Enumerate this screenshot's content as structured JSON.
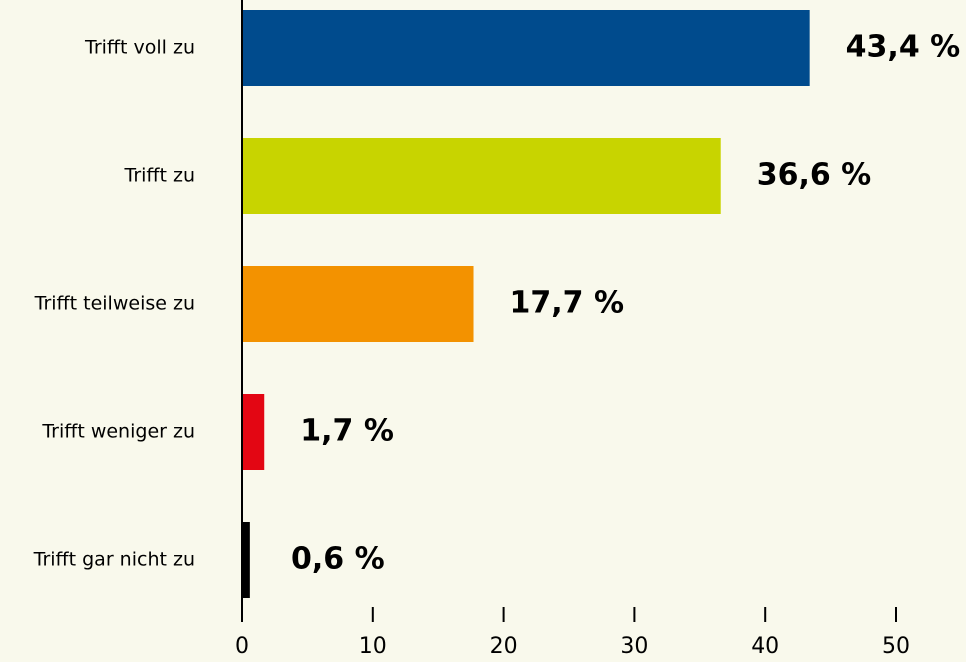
{
  "chart_data": {
    "type": "barh",
    "categories": [
      "Trifft voll zu",
      "Trifft zu",
      "Trifft teilweise zu",
      "Trifft weniger zu",
      "Trifft gar nicht zu"
    ],
    "values": [
      43.4,
      36.6,
      17.7,
      1.7,
      0.6
    ],
    "value_labels": [
      "43,4 %",
      "36,6 %",
      "17,7 %",
      "1,7 %",
      "0,6 %"
    ],
    "colors": [
      "#004b8d",
      "#c8d400",
      "#f39200",
      "#e30613",
      "#000000"
    ],
    "xlim": [
      0,
      50
    ],
    "xticks": [
      0,
      10,
      20,
      30,
      40,
      50
    ],
    "grid": false
  }
}
